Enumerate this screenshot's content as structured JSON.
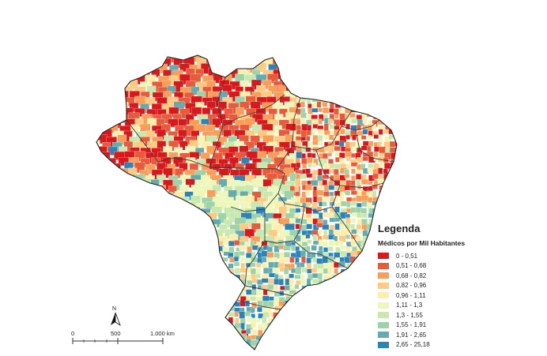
{
  "legend": {
    "title": "Legenda",
    "subtitle": "Médicos por Mil Habitantes",
    "classes": [
      {
        "label": "0 - 0,51",
        "color": "#d7191c"
      },
      {
        "label": "0,51 - 0,68",
        "color": "#e85b3a"
      },
      {
        "label": "0,68 - 0,82",
        "color": "#f99e59"
      },
      {
        "label": "0,82 - 0,96",
        "color": "#fec980"
      },
      {
        "label": "0,96 - 1,11",
        "color": "#ffedaa"
      },
      {
        "label": "1,11 - 1,3",
        "color": "#ecf7b9"
      },
      {
        "label": "1,3 - 1,55",
        "color": "#c7e9ad"
      },
      {
        "label": "1,55 - 1,91",
        "color": "#9dd3a7"
      },
      {
        "label": "1,91 - 2,65",
        "color": "#64abb0"
      },
      {
        "label": "2,65 - 25,18",
        "color": "#2b83ba"
      }
    ]
  },
  "scale": {
    "label_0": "0",
    "label_mid": "500",
    "label_end": "1.000 km"
  },
  "north": {
    "label": "N"
  }
}
